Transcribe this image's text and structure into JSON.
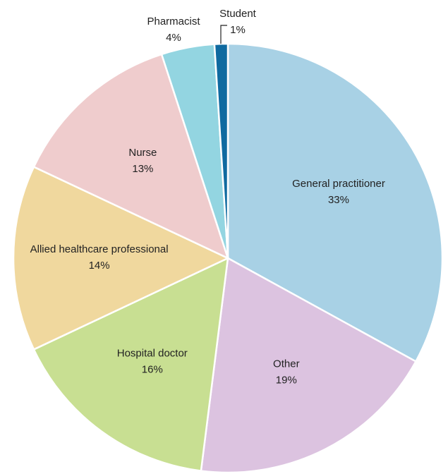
{
  "chart_data": {
    "type": "pie",
    "categories": [
      "General practitioner",
      "Other",
      "Hospital doctor",
      "Allied healthcare professional",
      "Nurse",
      "Pharmacist",
      "Student"
    ],
    "values": [
      33,
      19,
      16,
      14,
      13,
      4,
      1
    ],
    "value_labels": [
      "33%",
      "19%",
      "16%",
      "14%",
      "13%",
      "4%",
      "1%"
    ],
    "colors": [
      "#a8d1e5",
      "#dcc3e0",
      "#c8df92",
      "#f0d89e",
      "#efcccd",
      "#93d5e1",
      "#0f6aa0"
    ]
  }
}
